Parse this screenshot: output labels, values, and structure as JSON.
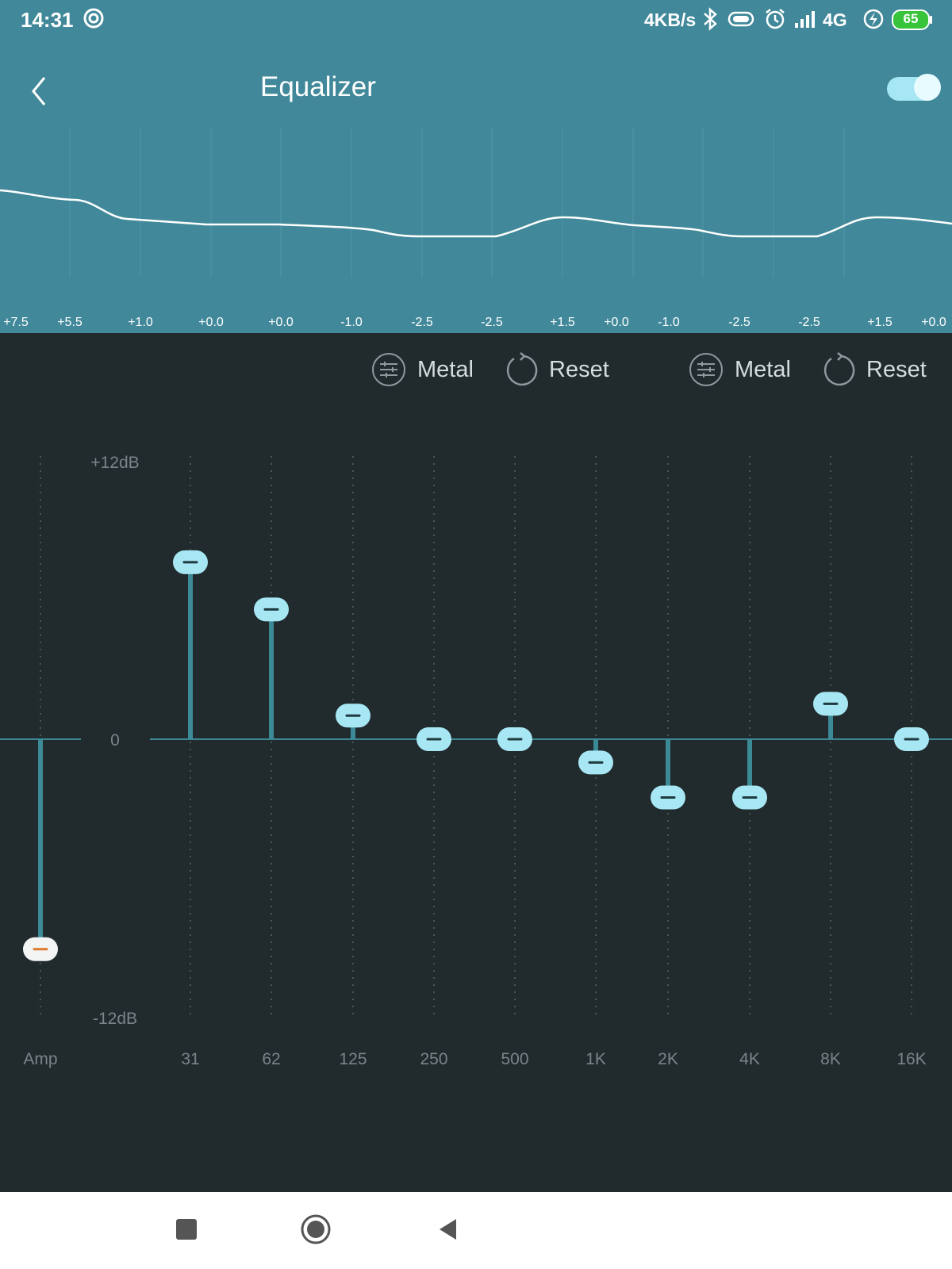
{
  "status_bar": {
    "time": "14:31",
    "speed": "4KB/s",
    "network": "4G",
    "battery": "65"
  },
  "header": {
    "title": "Equalizer",
    "enabled": true
  },
  "preview_labels": [
    "+7.5",
    "+5.5",
    "+1.0",
    "+0.0",
    "+0.0",
    "-1.0",
    "-2.5",
    "-2.5",
    "+1.5",
    "+0.0",
    "-1.0",
    "-2.5",
    "-2.5",
    "+1.5",
    "+0.0"
  ],
  "presets": [
    {
      "preset_label": "Metal",
      "reset_label": "Reset"
    },
    {
      "preset_label": "Metal",
      "reset_label": "Reset"
    }
  ],
  "scale": {
    "max_label": "+12dB",
    "zero_label": "0",
    "min_label": "-12dB",
    "max_db": 12,
    "min_db": -12
  },
  "amp": {
    "label": "Amp",
    "value_db": -9
  },
  "bands": [
    {
      "label": "31",
      "value_db": 7.5
    },
    {
      "label": "62",
      "value_db": 5.5
    },
    {
      "label": "125",
      "value_db": 1.0
    },
    {
      "label": "250",
      "value_db": 0
    },
    {
      "label": "500",
      "value_db": 0
    },
    {
      "label": "1K",
      "value_db": -1.0
    },
    {
      "label": "2K",
      "value_db": -2.5
    },
    {
      "label": "4K",
      "value_db": -2.5
    },
    {
      "label": "8K",
      "value_db": 1.5
    },
    {
      "label": "16K",
      "value_db": 0
    }
  ],
  "colors": {
    "top_bg": "#41899a",
    "panel_bg": "#212a2d",
    "handle": "#a6e7f3",
    "stem": "#3d8a97",
    "amp_handle": "#f3f5f5",
    "amp_accent": "#e07a2f"
  }
}
